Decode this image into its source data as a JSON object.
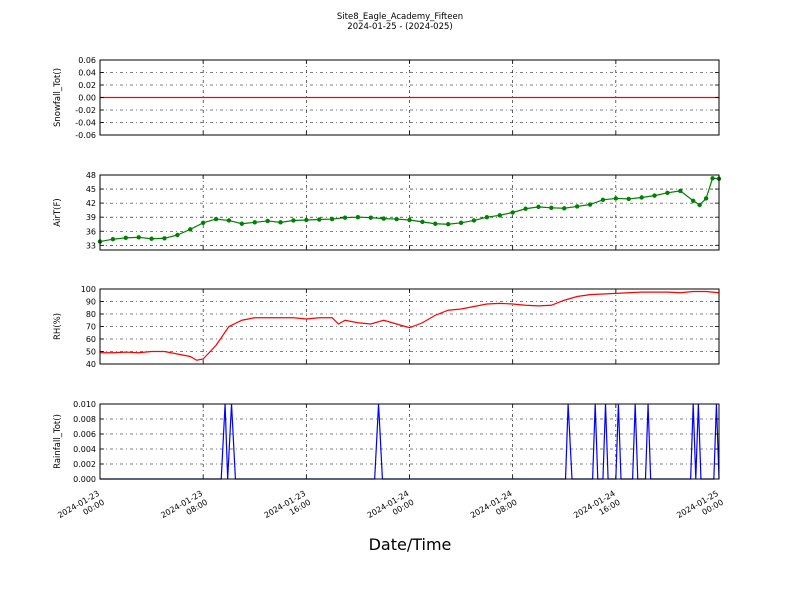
{
  "figure": {
    "title": "Site8_Eagle_Academy_Fifteen",
    "subtitle": "2024-01-25 - (2024-025)",
    "xlabel": "Date/Time",
    "x_ticks": [
      {
        "t": 0,
        "line1": "2024-01-23",
        "line2": "00:00"
      },
      {
        "t": 8,
        "line1": "2024-01-23",
        "line2": "08:00"
      },
      {
        "t": 16,
        "line1": "2024-01-23",
        "line2": "16:00"
      },
      {
        "t": 24,
        "line1": "2024-01-24",
        "line2": "00:00"
      },
      {
        "t": 32,
        "line1": "2024-01-24",
        "line2": "08:00"
      },
      {
        "t": 40,
        "line1": "2024-01-24",
        "line2": "16:00"
      },
      {
        "t": 48,
        "line1": "2024-01-25",
        "line2": "00:00"
      }
    ],
    "x_unit_note": "hours from 2024-01-23 00:00"
  },
  "chart_data": [
    {
      "type": "line",
      "ylabel": "Snowfall_Tot()",
      "ylim": [
        -0.06,
        0.06
      ],
      "yticks": [
        "0.06",
        "0.04",
        "0.02",
        "0.00",
        "-0.02",
        "-0.04",
        "-0.06"
      ],
      "ytick_values": [
        0.06,
        0.04,
        0.02,
        0.0,
        -0.02,
        -0.04,
        -0.06
      ],
      "color": "#ff0000",
      "markers": false,
      "grid": true,
      "series": [
        {
          "x": [
            0,
            48
          ],
          "y": [
            0,
            0
          ]
        }
      ]
    },
    {
      "type": "line",
      "ylabel": "AirT(F)",
      "ylim": [
        32,
        48
      ],
      "yticks": [
        "48",
        "45",
        "42",
        "39",
        "36",
        "33"
      ],
      "ytick_values": [
        48,
        45,
        42,
        39,
        36,
        33
      ],
      "color": "#008000",
      "markers": true,
      "grid": true,
      "series": [
        {
          "x": [
            0,
            1,
            2,
            3,
            4,
            5,
            6,
            7,
            8,
            9,
            10,
            11,
            12,
            13,
            14,
            15,
            16,
            17,
            18,
            19,
            20,
            21,
            22,
            23,
            24,
            25,
            26,
            27,
            28,
            29,
            30,
            31,
            32,
            33,
            34,
            35,
            36,
            37,
            38,
            39,
            40,
            41,
            42,
            43,
            44,
            45,
            46,
            46.5,
            47,
            47.5,
            48
          ],
          "y": [
            33.8,
            34.3,
            34.6,
            34.7,
            34.4,
            34.5,
            35.2,
            36.4,
            37.8,
            38.6,
            38.3,
            37.6,
            37.9,
            38.2,
            37.9,
            38.3,
            38.4,
            38.5,
            38.6,
            38.9,
            39.0,
            38.9,
            38.7,
            38.6,
            38.4,
            38.0,
            37.6,
            37.5,
            37.8,
            38.3,
            39.0,
            39.4,
            40.0,
            40.8,
            41.2,
            41.0,
            40.9,
            41.3,
            41.7,
            42.7,
            43.0,
            42.9,
            43.2,
            43.6,
            44.2,
            44.6,
            42.5,
            41.6,
            43.0,
            47.3,
            47.2
          ]
        }
      ]
    },
    {
      "type": "line",
      "ylabel": "RH(%)",
      "ylim": [
        40,
        100
      ],
      "yticks": [
        "100",
        "90",
        "80",
        "70",
        "60",
        "50",
        "40"
      ],
      "ytick_values": [
        100,
        90,
        80,
        70,
        60,
        50,
        40
      ],
      "color": "#ff0000",
      "markers": false,
      "grid": true,
      "series": [
        {
          "x": [
            0,
            1,
            2,
            3,
            4,
            5,
            6,
            7,
            7.5,
            8,
            9,
            10,
            11,
            12,
            13,
            14,
            15,
            16,
            17,
            18,
            18.5,
            19,
            20,
            21,
            22,
            23,
            24,
            25,
            26,
            27,
            28,
            29,
            30,
            31,
            32,
            33,
            34,
            35,
            36,
            37,
            38,
            39,
            40,
            41,
            42,
            43,
            44,
            45,
            46,
            47,
            48
          ],
          "y": [
            49,
            49,
            49.5,
            49,
            50,
            50,
            48,
            46,
            43,
            44,
            55,
            70,
            75,
            77,
            77,
            77,
            77,
            76,
            77,
            77,
            72,
            75,
            73,
            72,
            75,
            72,
            69,
            73,
            79,
            83,
            84,
            86,
            88,
            88.5,
            88,
            87,
            86.5,
            87,
            91,
            94,
            95.5,
            96,
            96.5,
            97,
            97.5,
            97.5,
            97.5,
            97,
            98,
            98,
            97
          ]
        }
      ]
    },
    {
      "type": "line",
      "ylabel": "Rainfall_Tot()",
      "ylim": [
        0,
        0.01
      ],
      "yticks": [
        "0.010",
        "0.008",
        "0.006",
        "0.004",
        "0.002",
        "0.000"
      ],
      "ytick_values": [
        0.01,
        0.008,
        0.006,
        0.004,
        0.002,
        0.0
      ],
      "color": "#0000ff",
      "markers": false,
      "grid": true,
      "series": [
        {
          "x": [
            0,
            9.4,
            9.7,
            9.9,
            10.2,
            10.5,
            10.8,
            21.3,
            21.6,
            21.9,
            36.1,
            36.3,
            36.6,
            38.2,
            38.4,
            38.6,
            39.0,
            39.2,
            39.4,
            40.0,
            40.2,
            40.4,
            41.3,
            41.5,
            41.7,
            42.3,
            42.5,
            42.7,
            45.8,
            46.0,
            46.2,
            46.4,
            46.6,
            47.6,
            47.8,
            48
          ],
          "y": [
            0,
            0,
            0.01,
            0,
            0.01,
            0,
            0,
            0,
            0.01,
            0,
            0,
            0.01,
            0,
            0,
            0.01,
            0,
            0,
            0.01,
            0,
            0,
            0.01,
            0,
            0,
            0.01,
            0,
            0,
            0.01,
            0,
            0,
            0.01,
            0,
            0.01,
            0,
            0,
            0.01,
            0
          ]
        }
      ]
    }
  ]
}
